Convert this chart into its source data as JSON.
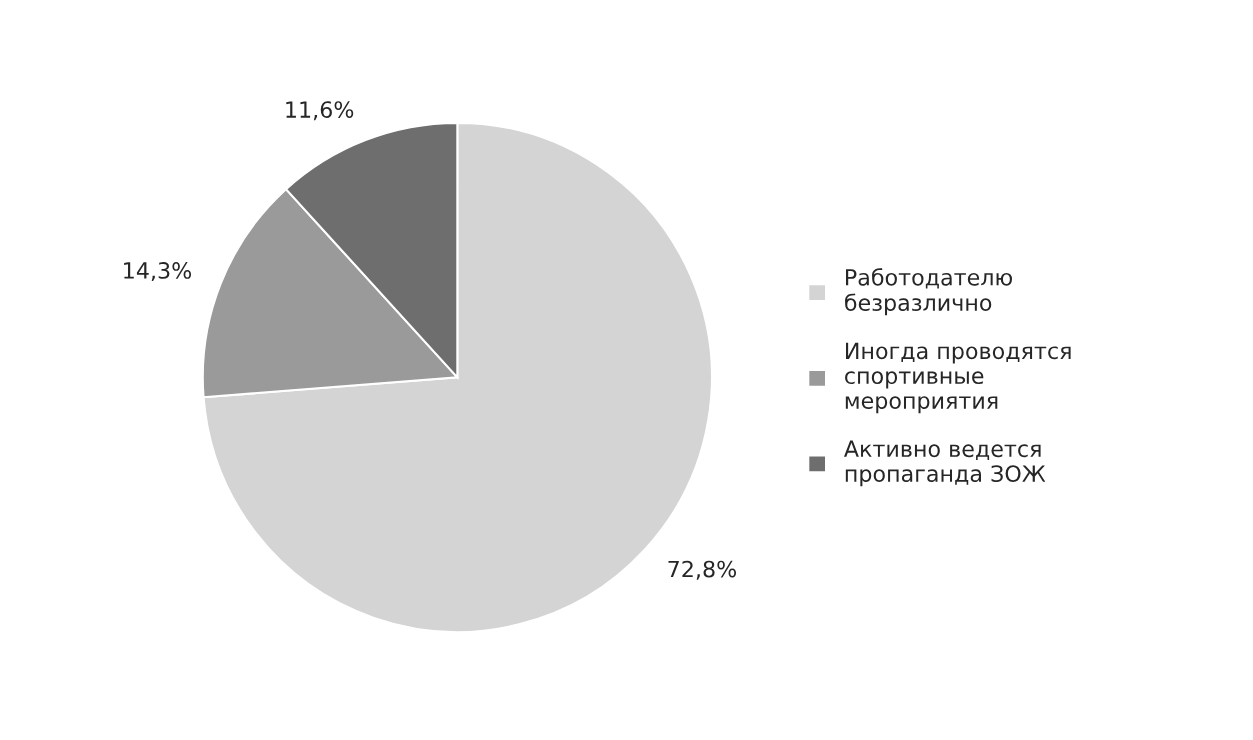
{
  "chart_data": {
    "type": "pie",
    "categories": [
      "Работодателю\nбезразлично",
      "Иногда проводятся\nспортивные\nмероприятия",
      "Активно ведется\nпропаганда ЗОЖ"
    ],
    "values": [
      72.8,
      14.3,
      11.6
    ],
    "value_labels": [
      "72,8%",
      "14,3%",
      "11,6%"
    ],
    "colors": [
      "#d4d4d4",
      "#9a9a9a",
      "#6e6e6e"
    ],
    "legend": "right"
  }
}
